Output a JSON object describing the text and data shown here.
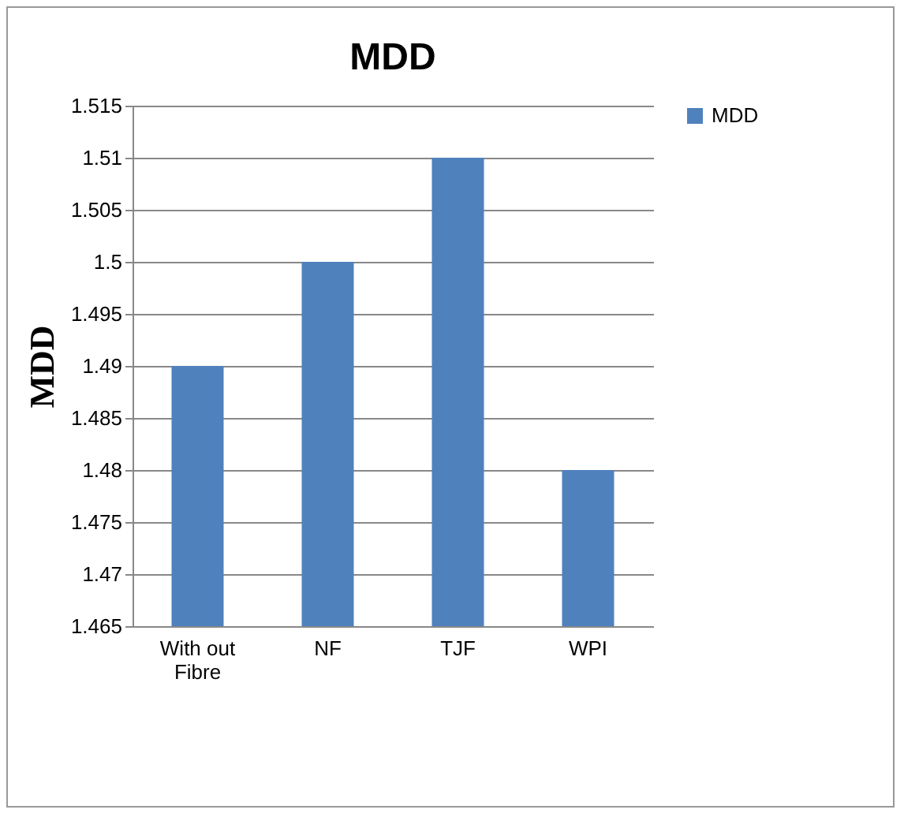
{
  "chart_data": {
    "type": "bar",
    "title": "MDD",
    "ylabel": "MDD",
    "categories": [
      "With out Fibre",
      "NF",
      "TJF",
      "WPI"
    ],
    "series": [
      {
        "name": "MDD",
        "color": "#4f81bd",
        "values": [
          1.49,
          1.5,
          1.51,
          1.48
        ]
      }
    ],
    "ylim": [
      1.465,
      1.515
    ],
    "yticks": [
      1.465,
      1.47,
      1.475,
      1.48,
      1.485,
      1.49,
      1.495,
      1.5,
      1.505,
      1.51,
      1.515
    ],
    "grid": "y",
    "legend": "right"
  }
}
